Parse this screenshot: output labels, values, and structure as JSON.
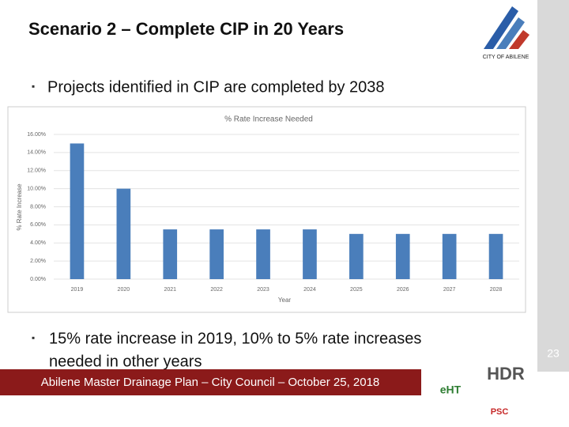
{
  "slide": {
    "title": "Scenario 2 – Complete CIP in 20 Years",
    "bullets": [
      "Projects identified in CIP are completed by 2038",
      "15% rate increase in 2019, 10% to 5% rate increases",
      "needed in other years"
    ],
    "logo_text": "CITY OF ABILENE",
    "page_number": "23",
    "footer": "Abilene Master Drainage Plan – City Council – October 25, 2018",
    "partner_logos": [
      "HDR",
      "eHT",
      "PSC"
    ]
  },
  "chart_data": {
    "type": "bar",
    "title": "% Rate Increase Needed",
    "x_label": "Year",
    "y_label": "% Rate Increase",
    "categories": [
      "2019",
      "2020",
      "2021",
      "2022",
      "2023",
      "2024",
      "2025",
      "2026",
      "2027",
      "2028"
    ],
    "values": [
      15,
      10,
      5.5,
      5.5,
      5.5,
      5.5,
      5,
      5,
      5,
      5
    ],
    "color": "#4a7ebb",
    "ylim": [
      0,
      16
    ],
    "yticks": [
      {
        "value": 0,
        "label": "0.00%"
      },
      {
        "value": 2,
        "label": "2.00%"
      },
      {
        "value": 4,
        "label": "4.00%"
      },
      {
        "value": 6,
        "label": "6.00%"
      },
      {
        "value": 8,
        "label": "8.00%"
      },
      {
        "value": 10,
        "label": "10.00%"
      },
      {
        "value": 12,
        "label": "12.00%"
      },
      {
        "value": 14,
        "label": "14.00%"
      },
      {
        "value": 16,
        "label": "16.00%"
      }
    ],
    "grid": true
  }
}
